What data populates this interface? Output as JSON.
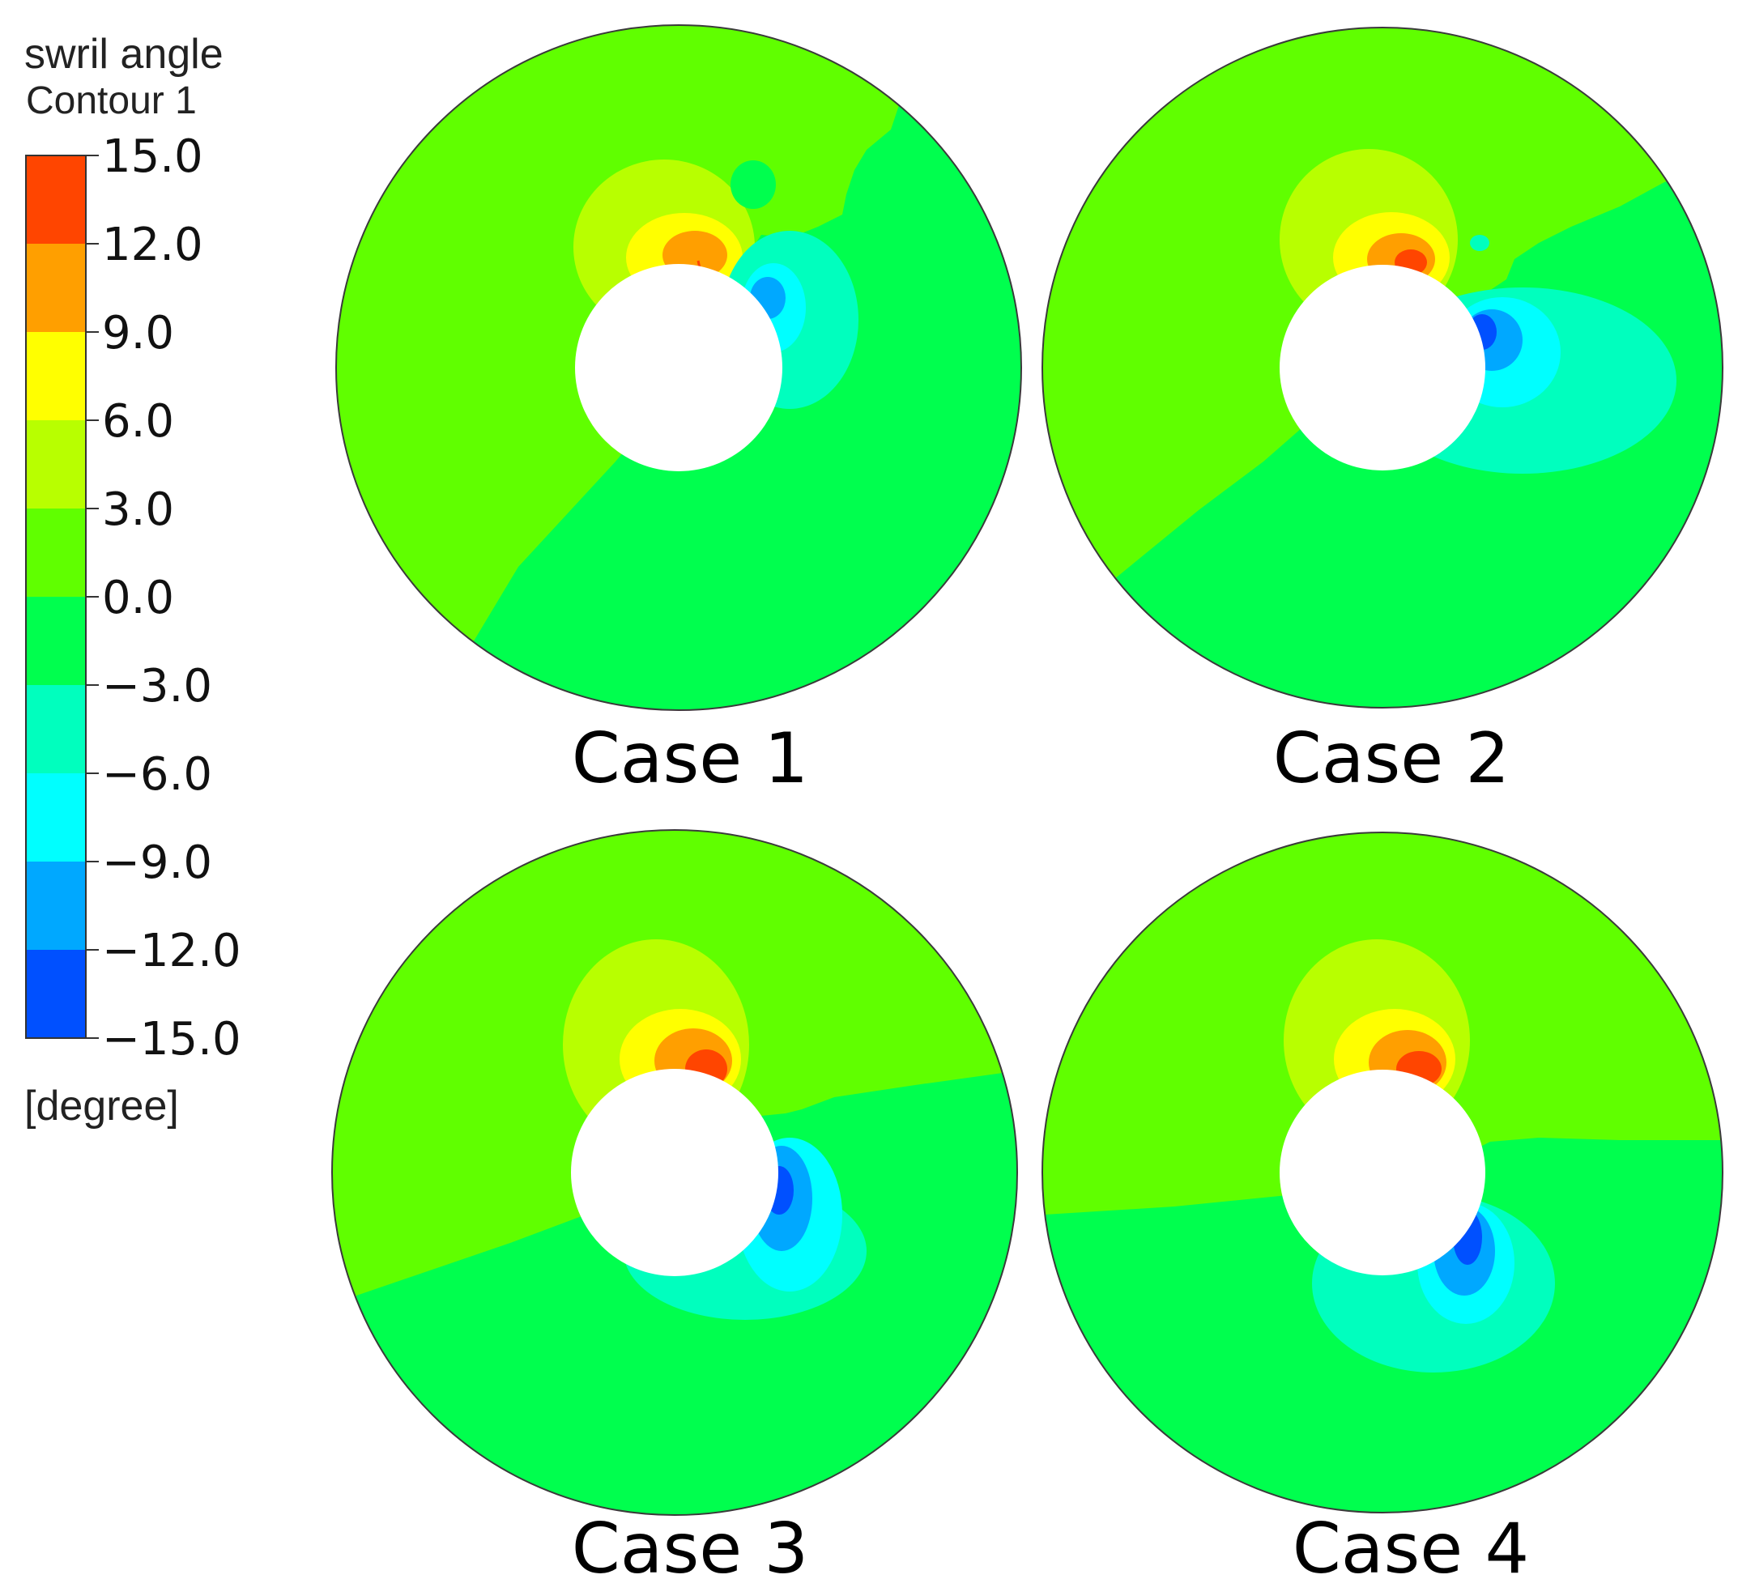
{
  "chart_data": {
    "type": "heatmap",
    "variable_title": "swril angle",
    "contour_name": "Contour 1",
    "unit": "[degree]",
    "colorbar": {
      "min": -15.0,
      "max": 15.0,
      "ticks": [
        "15.0",
        "12.0",
        "9.0",
        "6.0",
        "3.0",
        "0.0",
        "−3.0",
        "−6.0",
        "−9.0",
        "−12.0",
        "−15.0"
      ],
      "bands": [
        {
          "from": 12,
          "to": 15,
          "color": "#ff4500"
        },
        {
          "from": 9,
          "to": 12,
          "color": "#ff9f00"
        },
        {
          "from": 6,
          "to": 9,
          "color": "#ffff00"
        },
        {
          "from": 3,
          "to": 6,
          "color": "#b8ff00"
        },
        {
          "from": 0,
          "to": 3,
          "color": "#60ff00"
        },
        {
          "from": -3,
          "to": 0,
          "color": "#00ff4e"
        },
        {
          "from": -6,
          "to": -3,
          "color": "#00ffbe"
        },
        {
          "from": -9,
          "to": -6,
          "color": "#00ffff"
        },
        {
          "from": -12,
          "to": -9,
          "color": "#00a8ff"
        },
        {
          "from": -15,
          "to": -12,
          "color": "#0050ff"
        }
      ]
    },
    "panels": [
      {
        "label": "Case 1"
      },
      {
        "label": "Case 2"
      },
      {
        "label": "Case 3"
      },
      {
        "label": "Case 4"
      }
    ]
  }
}
